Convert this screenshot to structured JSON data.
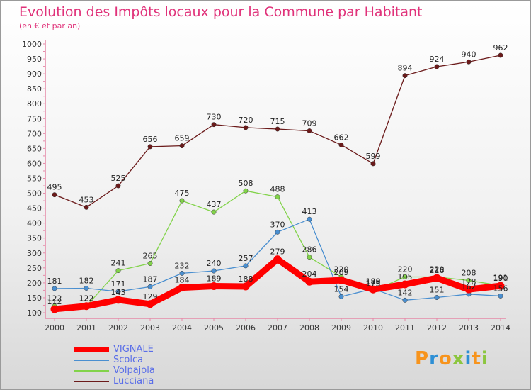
{
  "title": "Evolution des Impôts locaux pour la Commune par Habitant",
  "subtitle": "(en € et par an)",
  "logo": {
    "letters": [
      "P",
      "r",
      "o",
      "x",
      "i",
      "t",
      "i"
    ],
    "colors": [
      "#f7941d",
      "#2d8fd5",
      "#f7941d",
      "#8cc63f",
      "#2d8fd5",
      "#f7941d",
      "#8cc63f"
    ]
  },
  "chart_data": {
    "type": "line",
    "title": "Evolution des Impôts locaux pour la Commune par Habitant",
    "subtitle": "(en € et par an)",
    "xlabel": "",
    "ylabel": "",
    "ylim": [
      100,
      1000
    ],
    "yticks": [
      100,
      150,
      200,
      250,
      300,
      350,
      400,
      450,
      500,
      550,
      600,
      650,
      700,
      750,
      800,
      850,
      900,
      950,
      1000
    ],
    "grid": false,
    "legend_position": "bottom-left",
    "x": [
      "2000",
      "2001",
      "2002",
      "2003",
      "2004",
      "2005",
      "2006",
      "2007",
      "2008",
      "2009",
      "2010",
      "2011",
      "2012",
      "2013",
      "2014"
    ],
    "series": [
      {
        "name": "VIGNALE",
        "color": "#ff0000",
        "values": [
          112,
          122,
          143,
          129,
          184,
          189,
          188,
          279,
          204,
          209,
          178,
          195,
          216,
          178,
          190
        ]
      },
      {
        "name": "Scolca",
        "color": "#4a8fd0",
        "values": [
          181,
          182,
          171,
          187,
          232,
          240,
          257,
          370,
          413,
          154,
          180,
          142,
          151,
          162,
          156
        ]
      },
      {
        "name": "Volpajola",
        "color": "#82d34a",
        "values": [
          122,
          122,
          241,
          265,
          475,
          437,
          508,
          488,
          286,
          220,
          173,
          220,
          220,
          208,
          191
        ]
      },
      {
        "name": "Lucciana",
        "color": "#6b1a1a",
        "values": [
          495,
          453,
          525,
          656,
          659,
          730,
          720,
          715,
          709,
          662,
          599,
          894,
          924,
          940,
          962
        ]
      }
    ]
  }
}
